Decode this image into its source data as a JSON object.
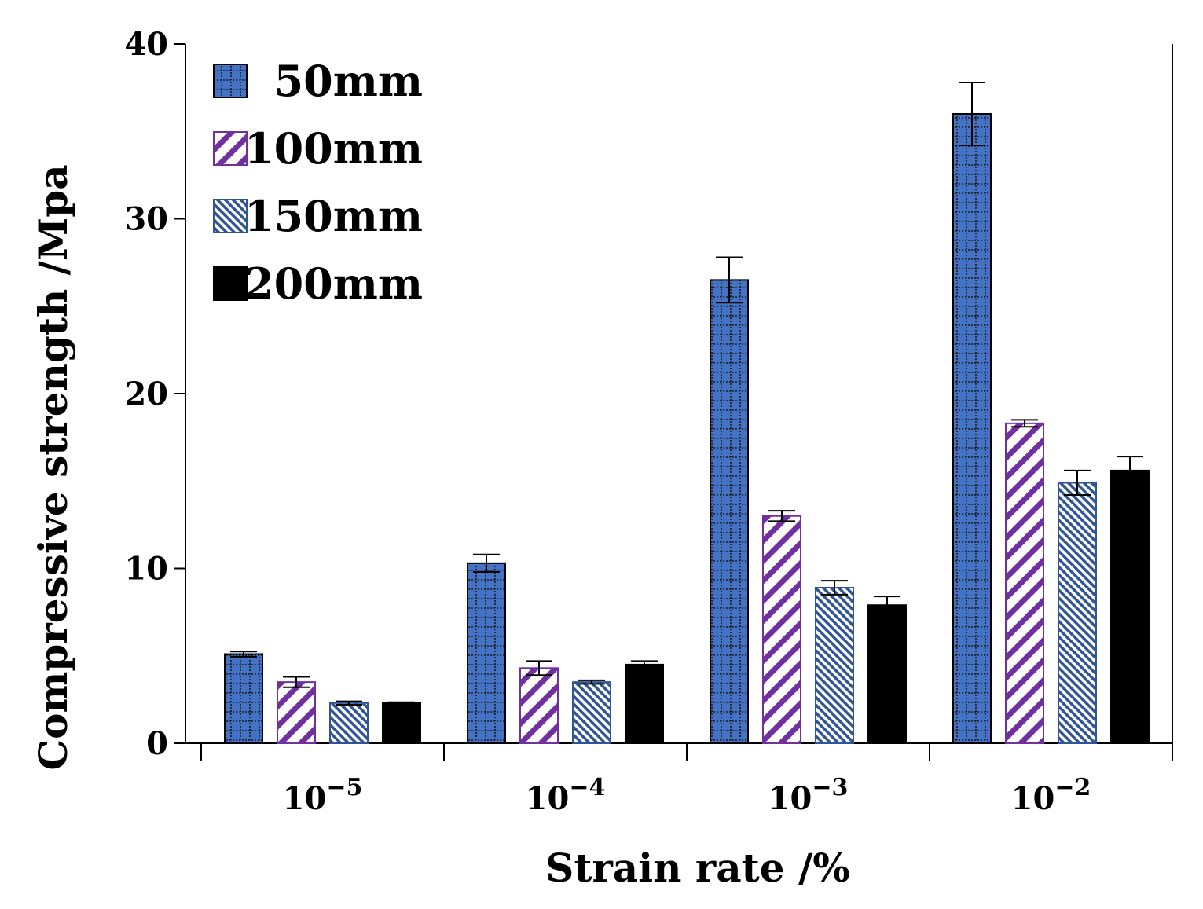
{
  "chart_data": {
    "type": "bar",
    "title": "",
    "xlabel": "Strain rate /%",
    "ylabel": "Compressive strength  /Mpa",
    "ylim": [
      0,
      40
    ],
    "yticks": [
      "0",
      "10",
      "20",
      "30",
      "40"
    ],
    "categories": [
      {
        "base": "10",
        "exp": "−5"
      },
      {
        "base": "10",
        "exp": "−4"
      },
      {
        "base": "10",
        "exp": "−3"
      },
      {
        "base": "10",
        "exp": "−2"
      }
    ],
    "legend_position": "top-left",
    "grid": false,
    "series": [
      {
        "name": "50mm",
        "values": [
          5.1,
          10.3,
          26.5,
          36.0
        ],
        "errors": [
          0.15,
          0.5,
          1.3,
          1.8
        ],
        "color": "#4472C4",
        "pattern": "dots"
      },
      {
        "name": "100mm",
        "values": [
          3.5,
          4.3,
          13.0,
          18.3
        ],
        "errors": [
          0.3,
          0.4,
          0.3,
          0.2
        ],
        "color": "#7030A0",
        "pattern": "diagonal"
      },
      {
        "name": "150mm",
        "values": [
          2.3,
          3.5,
          8.9,
          14.9
        ],
        "errors": [
          0.1,
          0.1,
          0.4,
          0.7
        ],
        "color": "#2F5597",
        "pattern": "fine-diagonal"
      },
      {
        "name": "200mm",
        "values": [
          2.3,
          4.5,
          7.9,
          15.6
        ],
        "errors": [
          0.05,
          0.2,
          0.5,
          0.8
        ],
        "color": "#000000",
        "pattern": "solid"
      }
    ]
  }
}
